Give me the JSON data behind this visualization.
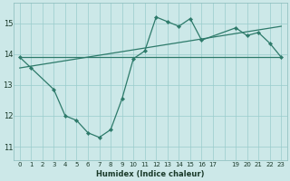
{
  "bg_color": "#cce8e8",
  "grid_color": "#99cccc",
  "line_color": "#2d7a6a",
  "xlabel": "Humidex (Indice chaleur)",
  "ylabel_ticks": [
    11,
    12,
    13,
    14,
    15
  ],
  "xlim": [
    -0.5,
    23.5
  ],
  "ylim": [
    10.55,
    15.65
  ],
  "xtick_labels": [
    "0",
    "1",
    "2",
    "3",
    "4",
    "5",
    "6",
    "7",
    "8",
    "9",
    "10",
    "11",
    "12",
    "13",
    "14",
    "15",
    "16",
    "17",
    "",
    "19",
    "20",
    "21",
    "22",
    "23"
  ],
  "xtick_positions": [
    0,
    1,
    2,
    3,
    4,
    5,
    6,
    7,
    8,
    9,
    10,
    11,
    12,
    13,
    14,
    15,
    16,
    17,
    18,
    19,
    20,
    21,
    22,
    23
  ],
  "line1_x": [
    0,
    23
  ],
  "line1_y": [
    13.9,
    13.9
  ],
  "line2_x": [
    0,
    23
  ],
  "line2_y": [
    13.55,
    14.9
  ],
  "curve_x": [
    0,
    1,
    3,
    4,
    5,
    6,
    7,
    8,
    9,
    10,
    11,
    12,
    13,
    14,
    15,
    16,
    19,
    20,
    21,
    22,
    23
  ],
  "curve_y": [
    13.9,
    13.55,
    12.85,
    12.0,
    11.85,
    11.45,
    11.3,
    11.55,
    12.55,
    13.85,
    14.1,
    15.2,
    15.05,
    14.9,
    15.15,
    14.45,
    14.85,
    14.6,
    14.7,
    14.35,
    13.9
  ]
}
